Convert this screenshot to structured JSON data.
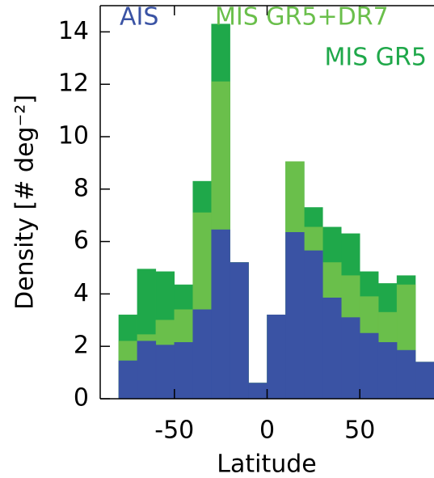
{
  "chart_data": {
    "type": "histogram",
    "xlabel": "Latitude",
    "ylabel": "Density [# deg⁻²]",
    "bins": [
      -80,
      -70,
      -60,
      -50,
      -40,
      -30,
      -20,
      -10,
      0,
      10,
      20,
      30,
      40,
      50,
      60,
      70,
      80,
      90
    ],
    "series": [
      {
        "name": "MIS GR5",
        "color": "#1fa84a",
        "legend": "top-right-second-row",
        "values": [
          3.2,
          4.95,
          4.85,
          4.35,
          8.3,
          14.3,
          5.2,
          0.6,
          3.2,
          9.05,
          7.3,
          6.55,
          6.3,
          4.85,
          4.4,
          4.7,
          1.4
        ]
      },
      {
        "name": "MIS GR5+DR7",
        "color": "#6abf4b",
        "legend": "top-middle",
        "values": [
          2.2,
          2.45,
          3.0,
          3.4,
          7.1,
          12.1,
          5.2,
          0.6,
          3.2,
          9.05,
          6.55,
          5.2,
          4.7,
          3.9,
          3.3,
          4.35,
          1.4
        ]
      },
      {
        "name": "AIS",
        "color": "#3a53a4",
        "legend": "top-left",
        "values": [
          1.45,
          2.2,
          2.05,
          2.15,
          3.4,
          6.45,
          5.2,
          0.6,
          3.2,
          6.35,
          5.65,
          3.85,
          3.1,
          2.5,
          2.15,
          1.85,
          1.4
        ]
      }
    ],
    "xlim": [
      -90,
      90
    ],
    "xticks": [
      -50,
      0,
      50
    ],
    "ylim": [
      0,
      15
    ],
    "yticks": [
      0,
      2,
      4,
      6,
      8,
      10,
      12,
      14
    ]
  }
}
